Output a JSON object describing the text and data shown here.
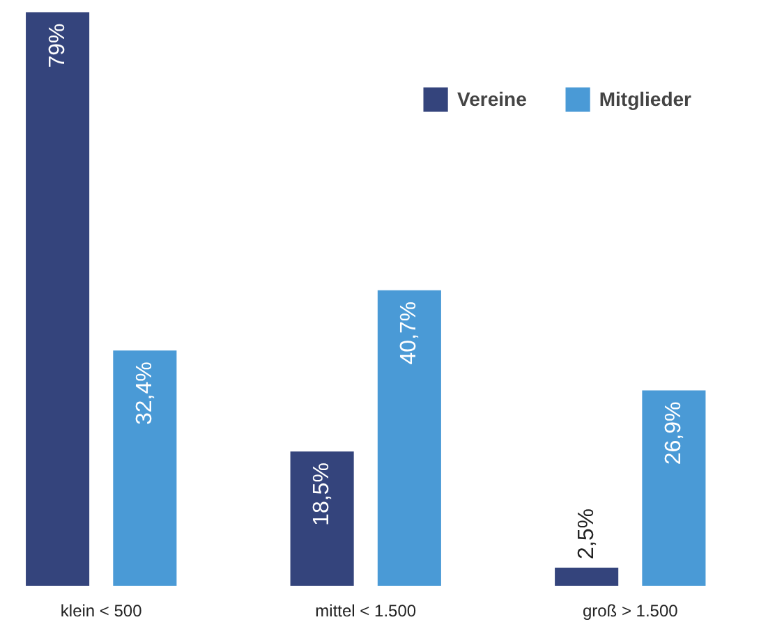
{
  "chart_data": {
    "type": "bar",
    "categories": [
      "klein < 500",
      "mittel < 1.500",
      "groß > 1.500"
    ],
    "series": [
      {
        "name": "Vereine",
        "color": "#34447c",
        "values": [
          79,
          18.5,
          2.5
        ],
        "value_labels": [
          "79%",
          "18,5%",
          "2,5%"
        ]
      },
      {
        "name": "Mitglieder",
        "color": "#4a9ad6",
        "values": [
          32.4,
          40.7,
          26.9
        ],
        "value_labels": [
          "32,4%",
          "40,7%",
          "26,9%"
        ]
      }
    ],
    "legend": "top right",
    "grid": false
  }
}
